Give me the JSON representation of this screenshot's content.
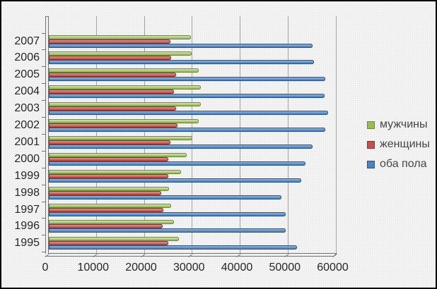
{
  "chart_data": {
    "type": "bar",
    "orientation": "horizontal",
    "categories": [
      "2007",
      "2006",
      "2005",
      "2004",
      "2003",
      "2002",
      "2001",
      "2000",
      "1999",
      "1998",
      "1997",
      "1996",
      "1995"
    ],
    "categories_order": "top-to-bottom",
    "series": [
      {
        "name": "мужчины",
        "color": "#9BBB59",
        "border_color": "#71893F",
        "values": [
          29600,
          29800,
          31300,
          31700,
          31700,
          31300,
          30000,
          28800,
          27600,
          25100,
          25600,
          26100,
          27100
        ]
      },
      {
        "name": "женщины",
        "color": "#C0504D",
        "border_color": "#8C3331",
        "values": [
          25400,
          25600,
          26500,
          26100,
          26600,
          26800,
          25400,
          25000,
          25000,
          23500,
          23900,
          23700,
          25000
        ]
      },
      {
        "name": "оба пола",
        "color": "#4F81BD",
        "border_color": "#2C5586",
        "values": [
          55100,
          55400,
          57700,
          57600,
          58300,
          57700,
          55000,
          53600,
          52700,
          48600,
          49500,
          49500,
          51800
        ]
      }
    ],
    "x_tick_labels": [
      "0",
      "10000",
      "20000",
      "30000",
      "40000",
      "50000",
      "60000"
    ],
    "xlim": [
      0,
      60000
    ],
    "x_tick_step": 10000,
    "grid": "vertical",
    "legend_position": "right",
    "title": ""
  }
}
